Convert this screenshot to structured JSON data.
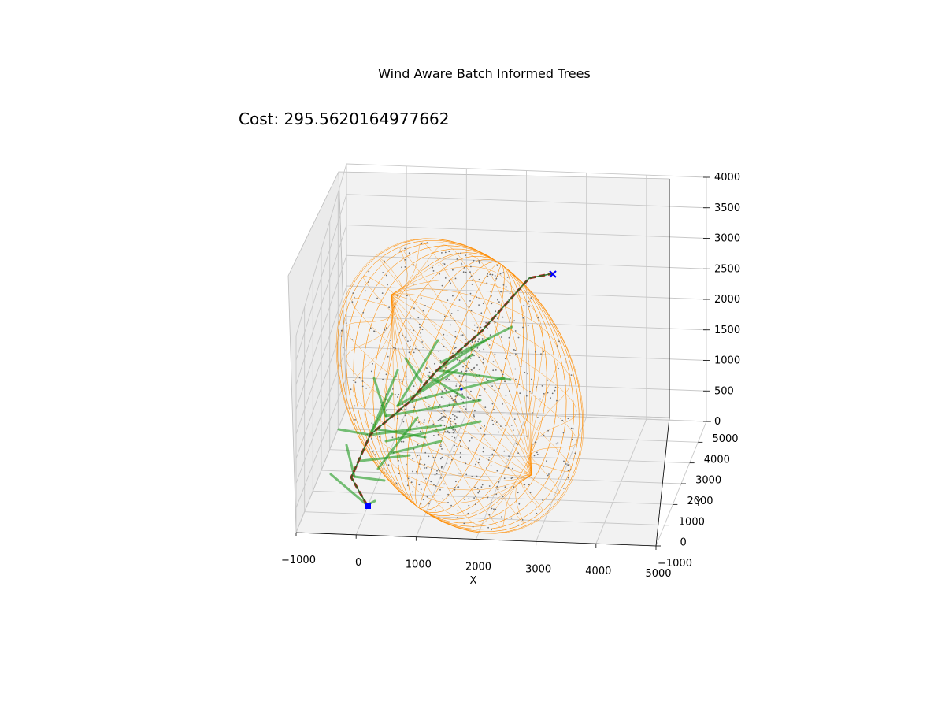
{
  "chart_data": {
    "type": "scatter",
    "title": "Wind Aware Batch Informed Trees",
    "annotation": "Cost: 295.5620164977662",
    "xlabel": "X",
    "ylabel": "Y",
    "zlabel": "",
    "xlim": [
      -1000,
      5000
    ],
    "ylim": [
      -1000,
      5000
    ],
    "zlim": [
      0,
      4000
    ],
    "x_ticks": [
      "−1000",
      "0",
      "1000",
      "2000",
      "3000",
      "4000",
      "5000"
    ],
    "y_ticks": [
      "−1000",
      "0",
      "1000",
      "2000",
      "3000",
      "4000",
      "5000"
    ],
    "z_ticks": [
      "0",
      "500",
      "1000",
      "1500",
      "2000",
      "2500",
      "3000",
      "3500",
      "4000"
    ],
    "grid": true,
    "colors": {
      "ellipsoid": "#ff8c00",
      "samples": "#6e6e6e",
      "tree": "#1f9a1f",
      "path": "#b22222",
      "start": "#0000ff",
      "goal": "#0000ff",
      "pane": "#f2f2f2"
    },
    "start": {
      "x": 0,
      "y": 0,
      "z": 0
    },
    "goal": {
      "x": 4000,
      "y": 4000,
      "z": 2900
    },
    "path": [
      {
        "x": 0,
        "y": 0,
        "z": 0
      },
      {
        "x": 100,
        "y": 300,
        "z": 420
      },
      {
        "x": 400,
        "y": 700,
        "z": 900
      },
      {
        "x": 800,
        "y": 1200,
        "z": 1350
      },
      {
        "x": 1300,
        "y": 1900,
        "z": 1750
      },
      {
        "x": 2000,
        "y": 2600,
        "z": 2200
      },
      {
        "x": 2700,
        "y": 3300,
        "z": 2650
      },
      {
        "x": 3400,
        "y": 3800,
        "z": 2900
      },
      {
        "x": 4000,
        "y": 4000,
        "z": 2900
      }
    ]
  }
}
